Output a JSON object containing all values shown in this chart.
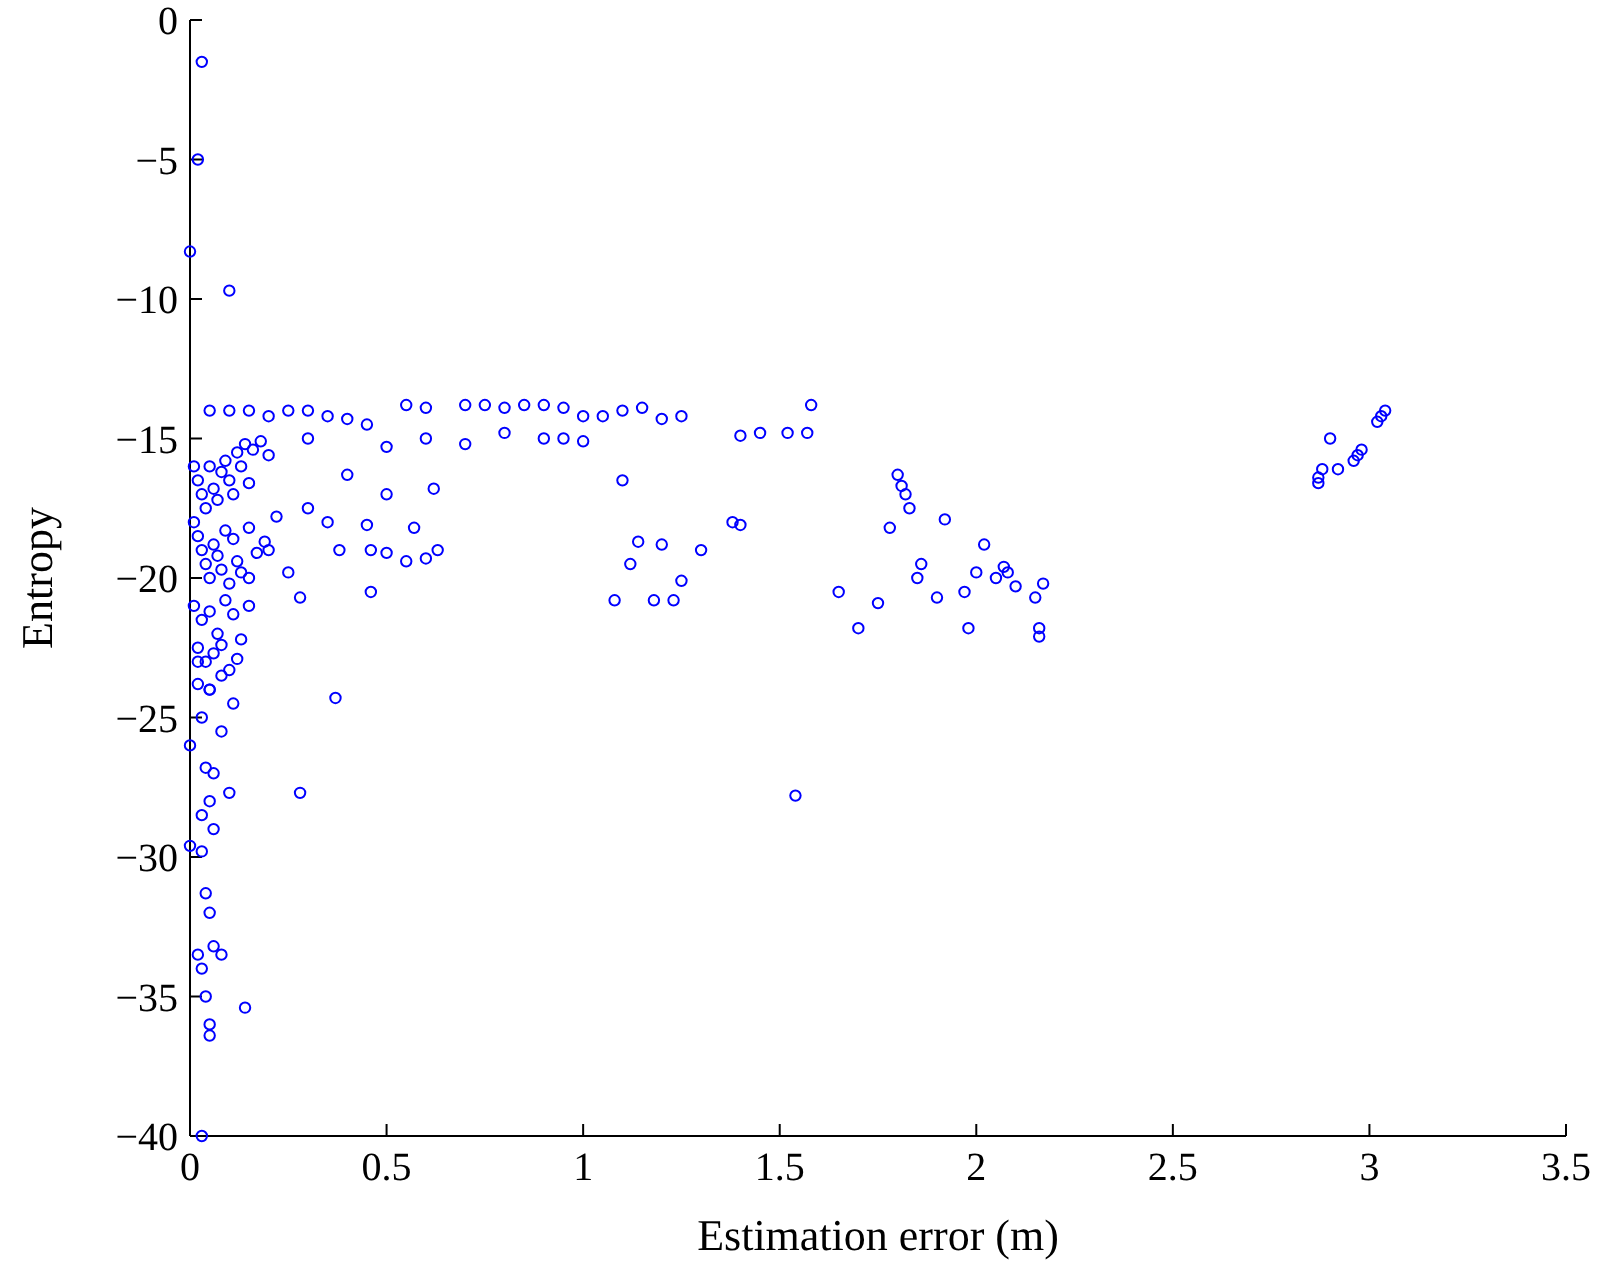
{
  "chart_data": {
    "type": "scatter",
    "xlabel": "Estimation error (m)",
    "ylabel": "Entropy",
    "xlim": [
      0,
      3.5
    ],
    "ylim": [
      -40,
      0
    ],
    "xticks": [
      0,
      0.5,
      1,
      1.5,
      2,
      2.5,
      3,
      3.5
    ],
    "yticks": [
      -40,
      -35,
      -30,
      -25,
      -20,
      -15,
      -10,
      -5,
      0
    ],
    "marker": "circle",
    "series": [
      {
        "color": "#0000ff",
        "x": [
          0.03,
          0.02,
          0,
          0.1,
          0.03,
          0.05,
          0.1,
          0.15,
          0.2,
          0.25,
          0.3,
          0.35,
          0.4,
          0.45,
          0.55,
          0.6,
          0.7,
          0.75,
          0.8,
          0.85,
          0.9,
          0.95,
          1.0,
          1.05,
          1.1,
          1.15,
          1.2,
          1.25,
          0.3,
          0.5,
          0.6,
          0.7,
          0.8,
          0.9,
          0.95,
          1.0,
          1.4,
          1.45,
          1.52,
          1.57,
          1.58,
          1.1,
          0.62,
          0.5,
          0.4,
          0.45,
          0.57,
          0.3,
          0.35,
          0.38,
          0.46,
          0.5,
          0.55,
          0.6,
          0.63,
          0.46,
          0.28,
          0.25,
          0.2,
          0.15,
          0.37,
          0.28,
          1.08,
          1.12,
          1.18,
          1.23,
          1.25,
          1.14,
          1.2,
          1.3,
          1.38,
          1.4,
          1.54,
          1.65,
          1.7,
          1.75,
          1.78,
          1.8,
          1.81,
          1.82,
          1.83,
          1.85,
          1.86,
          1.9,
          1.92,
          1.97,
          1.98,
          2.0,
          2.02,
          2.05,
          2.07,
          2.08,
          2.1,
          2.15,
          2.16,
          2.16,
          2.17,
          2.87,
          2.87,
          2.88,
          2.9,
          2.92,
          2.96,
          2.97,
          2.98,
          3.02,
          3.03,
          3.04,
          0.01,
          0.02,
          0.03,
          0.04,
          0.05,
          0.06,
          0.07,
          0.08,
          0.09,
          0.1,
          0.11,
          0.12,
          0.13,
          0.14,
          0.15,
          0.16,
          0.18,
          0.2,
          0.01,
          0.02,
          0.03,
          0.04,
          0.05,
          0.06,
          0.07,
          0.08,
          0.09,
          0.1,
          0.11,
          0.12,
          0.13,
          0.15,
          0.17,
          0.19,
          0.22,
          0.01,
          0.03,
          0.05,
          0.07,
          0.09,
          0.11,
          0.13,
          0.15,
          0.02,
          0.04,
          0.06,
          0.08,
          0.1,
          0.12,
          0.02,
          0.05,
          0.08,
          0.11,
          0.02,
          0.05,
          0.03,
          0.08,
          0.0,
          0.04,
          0.06,
          0.1,
          0.05,
          0.03,
          0.06,
          0.0,
          0.03,
          0.04,
          0.05,
          0.02,
          0.06,
          0.08,
          0.03,
          0.04,
          0.14,
          0.05,
          0.05
        ],
        "values": [
          -1.5,
          -5,
          -8.3,
          -9.7,
          -40,
          -14,
          -14,
          -14,
          -14.2,
          -14,
          -14,
          -14.2,
          -14.3,
          -14.5,
          -13.8,
          -13.9,
          -13.8,
          -13.8,
          -13.9,
          -13.8,
          -13.8,
          -13.9,
          -14.2,
          -14.2,
          -14,
          -13.9,
          -14.3,
          -14.2,
          -15,
          -15.3,
          -15,
          -15.2,
          -14.8,
          -15,
          -15,
          -15.1,
          -14.9,
          -14.8,
          -14.8,
          -14.8,
          -13.8,
          -16.5,
          -16.8,
          -17,
          -16.3,
          -18.1,
          -18.2,
          -17.5,
          -18,
          -19,
          -19,
          -19.1,
          -19.4,
          -19.3,
          -19,
          -20.5,
          -20.7,
          -19.8,
          -19,
          -20,
          -24.3,
          -27.7,
          -20.8,
          -19.5,
          -20.8,
          -20.8,
          -20.1,
          -18.7,
          -18.8,
          -19,
          -18,
          -18.1,
          -27.8,
          -20.5,
          -21.8,
          -20.9,
          -18.2,
          -16.3,
          -16.7,
          -17,
          -17.5,
          -20,
          -19.5,
          -20.7,
          -17.9,
          -20.5,
          -21.8,
          -19.8,
          -18.8,
          -20,
          -19.6,
          -19.8,
          -20.3,
          -20.7,
          -21.8,
          -22.1,
          -20.2,
          -16.4,
          -16.6,
          -16.1,
          -15,
          -16.1,
          -15.8,
          -15.6,
          -15.4,
          -14.4,
          -14.2,
          -14,
          -16,
          -16.5,
          -17,
          -17.5,
          -16,
          -16.8,
          -17.2,
          -16.2,
          -15.8,
          -16.5,
          -17,
          -15.5,
          -16,
          -15.2,
          -16.6,
          -15.4,
          -15.1,
          -15.6,
          -18,
          -18.5,
          -19,
          -19.5,
          -20,
          -18.8,
          -19.2,
          -19.7,
          -18.3,
          -20.2,
          -18.6,
          -19.4,
          -19.8,
          -18.2,
          -19.1,
          -18.7,
          -17.8,
          -21,
          -21.5,
          -21.2,
          -22,
          -20.8,
          -21.3,
          -22.2,
          -21,
          -22.5,
          -23,
          -22.7,
          -22.4,
          -23.3,
          -22.9,
          -23.8,
          -24,
          -23.5,
          -24.5,
          -23,
          -24,
          -25,
          -25.5,
          -26,
          -26.8,
          -27,
          -27.7,
          -28,
          -28.5,
          -29,
          -29.6,
          -29.8,
          -31.3,
          -32,
          -33.5,
          -33.2,
          -33.5,
          -34,
          -35,
          -35.4,
          -36,
          -36.4
        ]
      }
    ]
  }
}
